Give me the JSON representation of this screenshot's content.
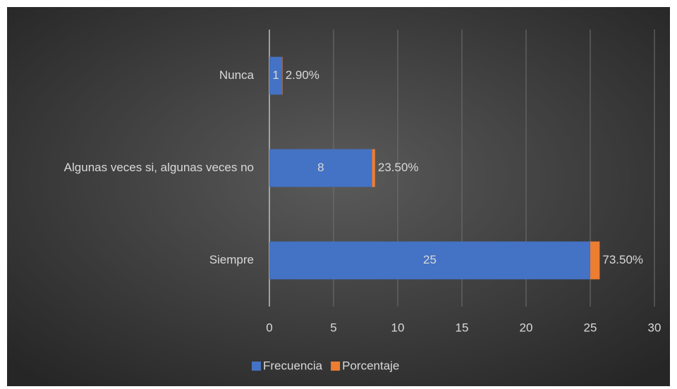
{
  "chart_data": {
    "type": "stacked-bar-horizontal",
    "categories": [
      "Nunca",
      "Algunas veces si, algunas veces no",
      "Siempre"
    ],
    "series": [
      {
        "name": "Frecuencia",
        "color": "#4472c4",
        "values": [
          1,
          8,
          25
        ]
      },
      {
        "name": "Porcentaje",
        "color": "#ed7d31",
        "values": [
          0.029,
          0.235,
          0.735
        ],
        "value_labels": [
          "2.90%",
          "23.50%",
          "73.50%"
        ]
      }
    ],
    "xlim": [
      0,
      30
    ],
    "xticks": [
      0,
      5,
      10,
      15,
      20,
      25,
      30
    ],
    "grid": true,
    "legend": "bottom"
  }
}
